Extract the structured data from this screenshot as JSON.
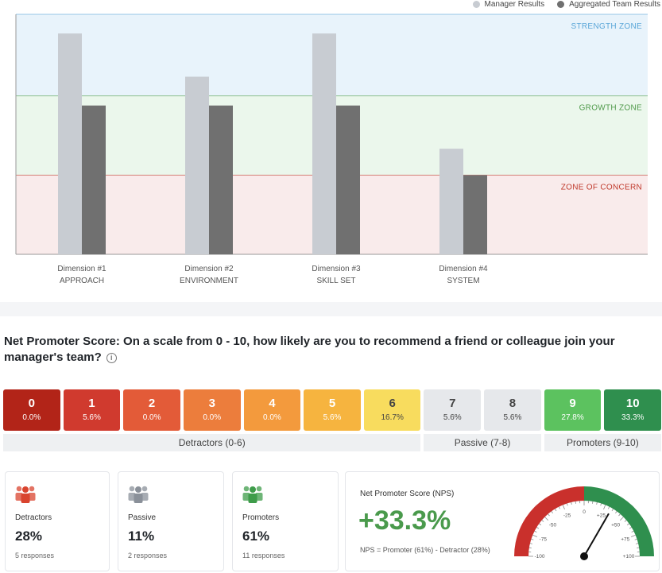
{
  "legend": {
    "manager": {
      "label": "Manager Results",
      "color": "#c8ccd2"
    },
    "team": {
      "label": "Aggregated Team Results",
      "color": "#707070"
    }
  },
  "zones": [
    {
      "name": "strength",
      "label": "STRENGTH ZONE",
      "color": "#5aa6d8",
      "fill": "#e8f3fb"
    },
    {
      "name": "growth",
      "label": "GROWTH ZONE",
      "color": "#4f9a4a",
      "fill": "#ebf7ec"
    },
    {
      "name": "concern",
      "label": "ZONE OF CONCERN",
      "color": "#c0392b",
      "fill": "#f9ebeb"
    }
  ],
  "chart_data": {
    "type": "bar",
    "categories": [
      "Dimension #1 APPROACH",
      "Dimension #2 ENVIRONMENT",
      "Dimension #3 SKILL SET",
      "Dimension #4 SYSTEM"
    ],
    "category_lines": [
      [
        "Dimension #1",
        "APPROACH"
      ],
      [
        "Dimension #2",
        "ENVIRONMENT"
      ],
      [
        "Dimension #3",
        "SKILL SET"
      ],
      [
        "Dimension #4",
        "SYSTEM"
      ]
    ],
    "series": [
      {
        "name": "Manager Results",
        "values": [
          92,
          74,
          92,
          44
        ]
      },
      {
        "name": "Aggregated Team Results",
        "values": [
          62,
          62,
          62,
          33
        ]
      }
    ],
    "ylim": [
      0,
      100
    ],
    "zone_bounds": [
      33,
      66
    ],
    "grid": false,
    "legend_position": "top-right"
  },
  "nps": {
    "question": "Net Promoter Score: On a scale from 0 - 10, how likely are you to recommend a friend or colleague join your manager's team?",
    "info_icon": "i",
    "scores": [
      {
        "score": "0",
        "pct": "0.0%",
        "color": "#b22418"
      },
      {
        "score": "1",
        "pct": "5.6%",
        "color": "#d03a2e"
      },
      {
        "score": "2",
        "pct": "0.0%",
        "color": "#e35b38"
      },
      {
        "score": "3",
        "pct": "0.0%",
        "color": "#ec7d3c"
      },
      {
        "score": "4",
        "pct": "0.0%",
        "color": "#f39a3d"
      },
      {
        "score": "5",
        "pct": "5.6%",
        "color": "#f6b43f"
      },
      {
        "score": "6",
        "pct": "16.7%",
        "color": "#f8dc5e"
      },
      {
        "score": "7",
        "pct": "5.6%",
        "color": "#e6e8eb"
      },
      {
        "score": "8",
        "pct": "5.6%",
        "color": "#e6e8eb"
      },
      {
        "score": "9",
        "pct": "27.8%",
        "color": "#5cc25f"
      },
      {
        "score": "10",
        "pct": "33.3%",
        "color": "#2f8f4e"
      }
    ],
    "groups": [
      {
        "label": "Detractors (0-6)",
        "span": 7
      },
      {
        "label": "Passive (7-8)",
        "span": 2
      },
      {
        "label": "Promoters (9-10)",
        "span": 2
      }
    ]
  },
  "cards": {
    "detractors": {
      "title": "Detractors",
      "value": "28%",
      "sub": "5 responses",
      "icon": "people-icon",
      "color": "#d9442f"
    },
    "passive": {
      "title": "Passive",
      "value": "11%",
      "sub": "2 responses",
      "icon": "people-icon",
      "color": "#8a9099"
    },
    "promoters": {
      "title": "Promoters",
      "value": "61%",
      "sub": "11 responses",
      "icon": "people-icon",
      "color": "#3e9c4a"
    }
  },
  "nps_summary": {
    "title": "Net Promoter Score (NPS)",
    "value": "+33.3%",
    "formula": "NPS = Promoter (61%) - Detractor (28%)",
    "gauge": {
      "min": -100,
      "max": 100,
      "value": 33.3,
      "ticks": [
        "-100",
        "-75",
        "-50",
        "-25",
        "0",
        "+25",
        "+50",
        "+75",
        "+100"
      ],
      "negative_color": "#c9302c",
      "positive_color": "#2f8f4e"
    }
  }
}
